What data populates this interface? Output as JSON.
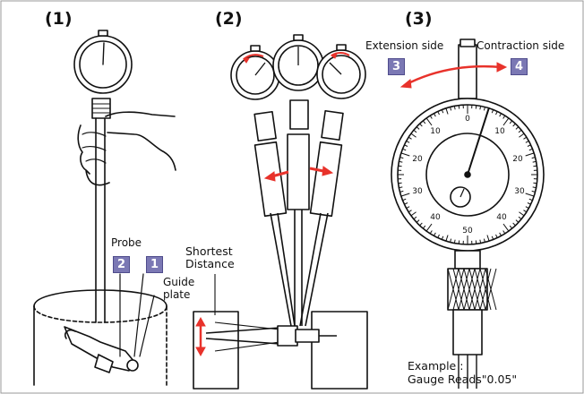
{
  "panels": [
    {
      "number": "(1)"
    },
    {
      "number": "(2)"
    },
    {
      "number": "(3)"
    }
  ],
  "panel1": {
    "probe_label": "Probe",
    "guide_plate_label": "Guide\nplate",
    "badge_left": "2",
    "badge_right": "1"
  },
  "panel2": {
    "shortest_distance_label": "Shortest\nDistance"
  },
  "panel3": {
    "extension_label": "Extension side",
    "contraction_label": "Contraction side",
    "badge_extension": "3",
    "badge_contraction": "4",
    "dial_numbers": [
      "0",
      "10",
      "10",
      "20",
      "20",
      "30",
      "30",
      "40",
      "40",
      "50"
    ],
    "example_label": "Example :",
    "gauge_reads_label": "Gauge Reads\"0.05\""
  },
  "colors": {
    "arrow_red": "#e8322b",
    "badge_fill": "#7b78b4",
    "line": "#111111"
  }
}
